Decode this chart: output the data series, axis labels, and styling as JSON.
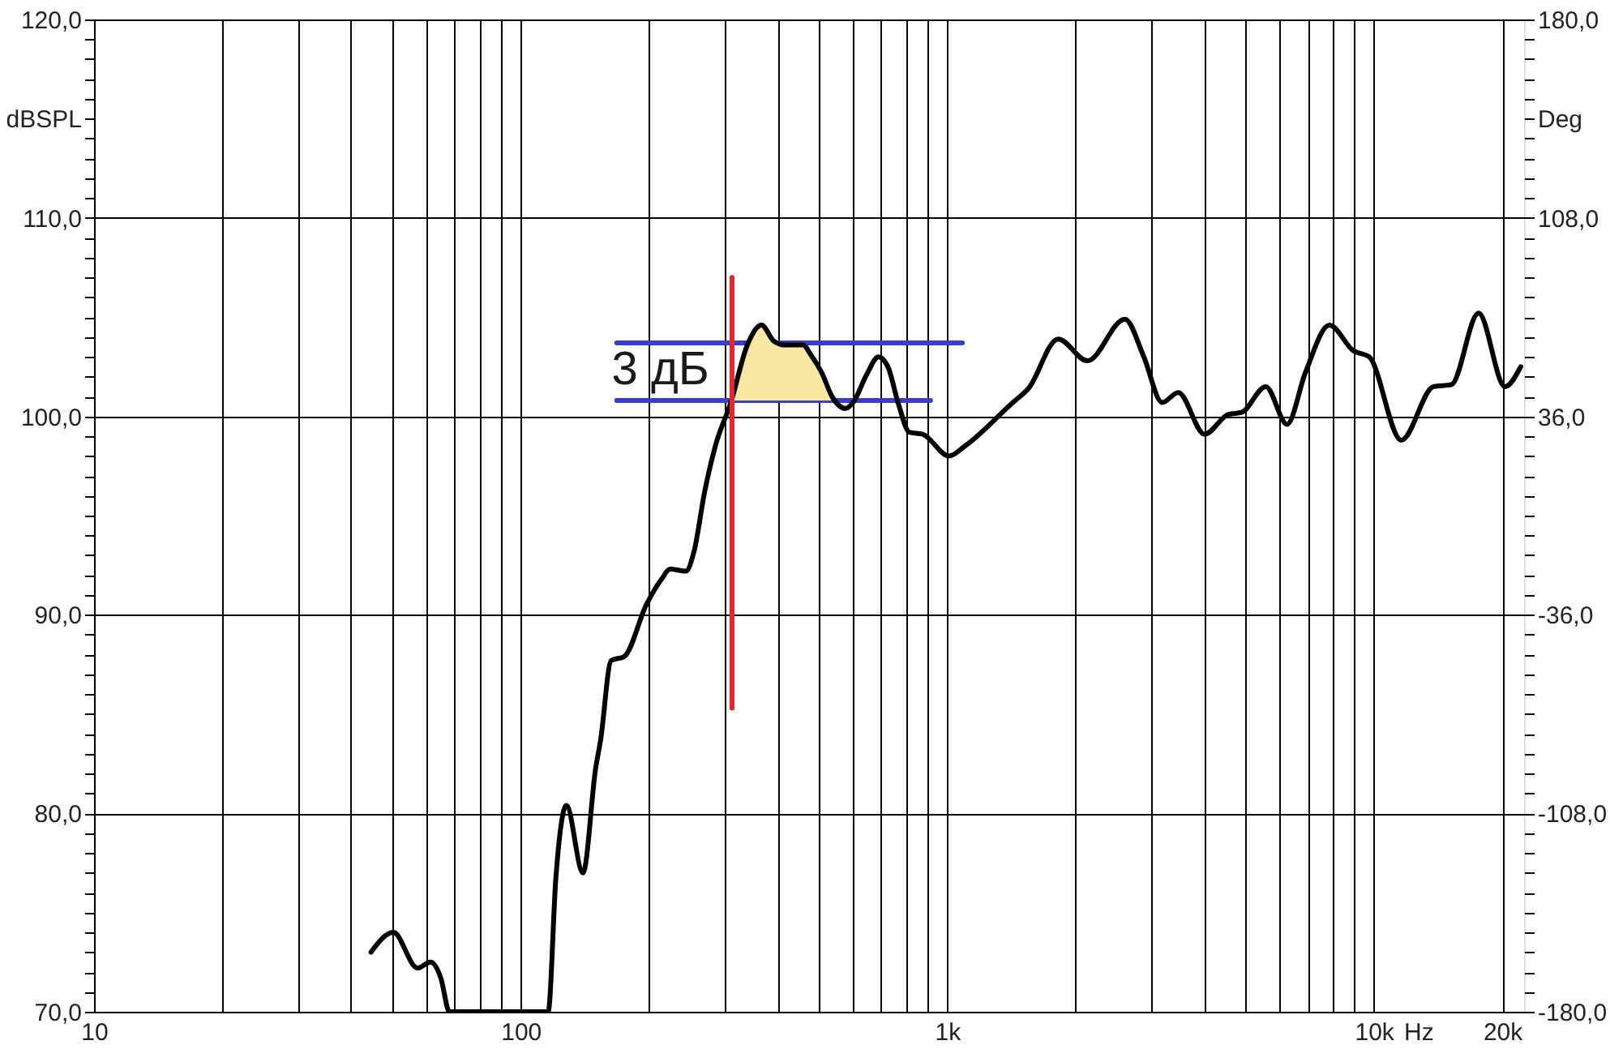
{
  "chart_data": {
    "type": "line",
    "xlabel": "Hz",
    "ylabel": "dBSPL",
    "y2label": "Deg",
    "log": "x",
    "grid": true,
    "xlim": [
      10,
      22500
    ],
    "xticks": [
      10,
      {
        "value": 20,
        "label": null
      },
      {
        "value": 30,
        "label": null
      },
      {
        "value": 40,
        "label": null
      },
      {
        "value": 50,
        "label": null
      },
      {
        "value": 60,
        "label": null
      },
      {
        "value": 70,
        "label": null
      },
      {
        "value": 80,
        "label": null
      },
      {
        "value": 90,
        "label": null
      },
      100,
      {
        "value": 200,
        "label": null
      },
      {
        "value": 300,
        "label": null
      },
      {
        "value": 400,
        "label": null
      },
      {
        "value": 500,
        "label": null
      },
      {
        "value": 600,
        "label": null
      },
      {
        "value": 700,
        "label": null
      },
      {
        "value": 800,
        "label": null
      },
      {
        "value": 900,
        "label": null
      },
      {
        "value": 1000,
        "label": "1k"
      },
      {
        "value": 2000,
        "label": null
      },
      {
        "value": 3000,
        "label": null
      },
      {
        "value": 4000,
        "label": null
      },
      {
        "value": 5000,
        "label": null
      },
      {
        "value": 6000,
        "label": null
      },
      {
        "value": 7000,
        "label": null
      },
      {
        "value": 8000,
        "label": null
      },
      {
        "value": 9000,
        "label": null
      },
      {
        "value": 10000,
        "label": "10k"
      },
      {
        "value": 20000,
        "label": "20k"
      }
    ],
    "ylim": [
      70,
      120
    ],
    "yticks": [
      {
        "value": 70,
        "label": "70,0"
      },
      {
        "value": 71,
        "label": null
      },
      {
        "value": 72,
        "label": null
      },
      {
        "value": 73,
        "label": null
      },
      {
        "value": 74,
        "label": null
      },
      {
        "value": 75,
        "label": null
      },
      {
        "value": 76,
        "label": null
      },
      {
        "value": 77,
        "label": null
      },
      {
        "value": 78,
        "label": null
      },
      {
        "value": 79,
        "label": null
      },
      {
        "value": 80,
        "label": "80,0"
      },
      {
        "value": 81,
        "label": null
      },
      {
        "value": 82,
        "label": null
      },
      {
        "value": 83,
        "label": null
      },
      {
        "value": 84,
        "label": null
      },
      {
        "value": 85,
        "label": null
      },
      {
        "value": 86,
        "label": null
      },
      {
        "value": 87,
        "label": null
      },
      {
        "value": 88,
        "label": null
      },
      {
        "value": 89,
        "label": null
      },
      {
        "value": 90,
        "label": "90,0"
      },
      {
        "value": 91,
        "label": null
      },
      {
        "value": 92,
        "label": null
      },
      {
        "value": 93,
        "label": null
      },
      {
        "value": 94,
        "label": null
      },
      {
        "value": 95,
        "label": null
      },
      {
        "value": 96,
        "label": null
      },
      {
        "value": 97,
        "label": null
      },
      {
        "value": 98,
        "label": null
      },
      {
        "value": 99,
        "label": null
      },
      {
        "value": 100,
        "label": "100,0"
      },
      {
        "value": 101,
        "label": null
      },
      {
        "value": 102,
        "label": null
      },
      {
        "value": 103,
        "label": null
      },
      {
        "value": 104,
        "label": null
      },
      {
        "value": 105,
        "label": null
      },
      {
        "value": 106,
        "label": null
      },
      {
        "value": 107,
        "label": null
      },
      {
        "value": 108,
        "label": null
      },
      {
        "value": 109,
        "label": null
      },
      {
        "value": 110,
        "label": "110,0"
      },
      {
        "value": 111,
        "label": null
      },
      {
        "value": 112,
        "label": null
      },
      {
        "value": 113,
        "label": null
      },
      {
        "value": 114,
        "label": null
      },
      {
        "value": 115,
        "label": null
      },
      {
        "value": 116,
        "label": null
      },
      {
        "value": 117,
        "label": null
      },
      {
        "value": 118,
        "label": null
      },
      {
        "value": 119,
        "label": null
      },
      {
        "value": 120,
        "label": "120,0"
      }
    ],
    "y2lim": [
      -180,
      180
    ],
    "y2ticks": [
      {
        "value": -180,
        "label": "-180,0"
      },
      {
        "value": -172.8,
        "label": null
      },
      {
        "value": -165.6,
        "label": null
      },
      {
        "value": -158.4,
        "label": null
      },
      {
        "value": -151.2,
        "label": null
      },
      {
        "value": -144,
        "label": null
      },
      {
        "value": -136.8,
        "label": null
      },
      {
        "value": -129.6,
        "label": null
      },
      {
        "value": -122.4,
        "label": null
      },
      {
        "value": -115.2,
        "label": null
      },
      {
        "value": -108,
        "label": "-108,0"
      },
      {
        "value": -100.8,
        "label": null
      },
      {
        "value": -93.6,
        "label": null
      },
      {
        "value": -86.4,
        "label": null
      },
      {
        "value": -79.2,
        "label": null
      },
      {
        "value": -72,
        "label": null
      },
      {
        "value": -64.8,
        "label": null
      },
      {
        "value": -57.6,
        "label": null
      },
      {
        "value": -50.4,
        "label": null
      },
      {
        "value": -43.2,
        "label": null
      },
      {
        "value": -36,
        "label": "-36,0"
      },
      {
        "value": -28.8,
        "label": null
      },
      {
        "value": -21.6,
        "label": null
      },
      {
        "value": -14.4,
        "label": null
      },
      {
        "value": -7.2,
        "label": null
      },
      {
        "value": 0,
        "label": null
      },
      {
        "value": 7.2,
        "label": null
      },
      {
        "value": 14.4,
        "label": null
      },
      {
        "value": 21.6,
        "label": null
      },
      {
        "value": 28.8,
        "label": null
      },
      {
        "value": 36,
        "label": "36,0"
      },
      {
        "value": 43.2,
        "label": null
      },
      {
        "value": 50.4,
        "label": null
      },
      {
        "value": 57.6,
        "label": null
      },
      {
        "value": 64.8,
        "label": null
      },
      {
        "value": 72,
        "label": null
      },
      {
        "value": 79.2,
        "label": null
      },
      {
        "value": 86.4,
        "label": null
      },
      {
        "value": 93.6,
        "label": null
      },
      {
        "value": 100.8,
        "label": null
      },
      {
        "value": 108,
        "label": "108,0"
      },
      {
        "value": 115.2,
        "label": null
      },
      {
        "value": 122.4,
        "label": null
      },
      {
        "value": 129.6,
        "label": null
      },
      {
        "value": 136.8,
        "label": null
      },
      {
        "value": 144,
        "label": null
      },
      {
        "value": 151.2,
        "label": null
      },
      {
        "value": 158.4,
        "label": null
      },
      {
        "value": 165.6,
        "label": null
      },
      {
        "value": 172.8,
        "label": null
      },
      {
        "value": 180,
        "label": "180,0"
      }
    ],
    "annotations": [
      "3 дБ"
    ],
    "series": [
      {
        "type": "line",
        "color": "#3c3ccc",
        "x": [
          168,
          1085
        ],
        "values": [
          103.7,
          103.7
        ]
      },
      {
        "type": "line",
        "color": "#3c3ccc",
        "x": [
          168,
          914
        ],
        "values": [
          100.8,
          100.8
        ]
      },
      {
        "type": "line",
        "color": "#fbe7a4",
        "x": [
          316,
          340,
          367,
          392,
          415,
          459,
          479,
          508,
          537
        ],
        "values": [
          null,
          null,
          null,
          null,
          null,
          null,
          null,
          null,
          null
        ],
        "lower": [
          100.8,
          100.8,
          100.8,
          100.8,
          100.8,
          100.8,
          100.8,
          100.8,
          100.8
        ],
        "upper": [
          100.8,
          103.6,
          104.6,
          103.8,
          103.6,
          103.6,
          103.1,
          102.2,
          100.8
        ]
      },
      {
        "color": "#000000",
        "x": [
          44.6,
          50.3,
          57.3,
          61.5,
          65.0,
          68.1,
          116,
          121,
          128,
          140,
          150,
          154,
          163,
          175,
          197,
          214,
          224,
          244,
          255,
          270,
          286,
          311,
          340,
          367,
          392,
          415,
          459,
          479,
          508,
          537,
          577,
          602,
          647,
          690,
          726,
          769,
          815,
          876,
          1010,
          1100,
          1425,
          1550,
          1820,
          2130,
          2610,
          2890,
          3190,
          3480,
          4010,
          4560,
          4900,
          5580,
          6260,
          6910,
          7870,
          8960,
          9750,
          11600,
          13800,
          15200,
          17600,
          20300,
          22100
        ],
        "values": [
          73.0,
          74.0,
          72.2,
          72.5,
          71.7,
          70,
          70,
          76.8,
          80.4,
          77.0,
          82.3,
          83.7,
          87.7,
          87.9,
          90.5,
          91.8,
          92.3,
          92.2,
          93.2,
          96.2,
          98.5,
          100.7,
          103.6,
          104.6,
          103.8,
          103.6,
          103.6,
          103.1,
          102.2,
          101.0,
          100.4,
          100.7,
          102.1,
          103.0,
          102.5,
          100.6,
          99.2,
          99.1,
          98.0,
          98.5,
          100.7,
          101.4,
          103.9,
          102.8,
          104.9,
          103.0,
          100.7,
          101.2,
          99.1,
          100.1,
          100.2,
          101.5,
          99.6,
          102.2,
          104.6,
          103.3,
          103.0,
          98.8,
          101.5,
          101.6,
          105.2,
          101.5,
          102.5
        ]
      },
      {
        "type": "line",
        "color": "#e3262b",
        "x": [
          313,
          313
        ],
        "values": [
          107.0,
          85.3
        ]
      }
    ]
  }
}
